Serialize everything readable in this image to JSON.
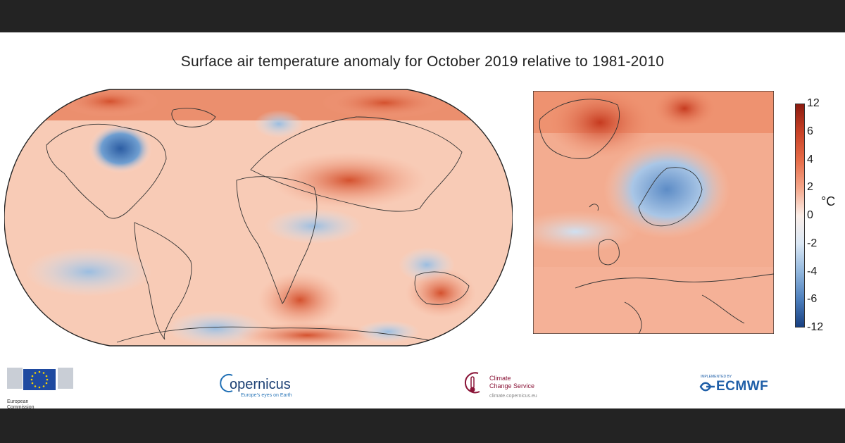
{
  "title": "Surface air temperature anomaly for October 2019 relative to 1981-2010",
  "colorbar": {
    "unit": "°C",
    "ticks": [
      "12",
      "6",
      "4",
      "2",
      "0",
      "-2",
      "-4",
      "-6",
      "-12"
    ],
    "colors": [
      "#8b1a0f",
      "#c84126",
      "#e66b47",
      "#f5a68a",
      "#fbe0d6",
      "#dbe8f5",
      "#93b8de",
      "#4d7fbd",
      "#173f80"
    ]
  },
  "footer": {
    "ec_label_1": "European",
    "ec_label_2": "Commission",
    "copernicus_name": "opernicus",
    "copernicus_tagline": "Europe's eyes on Earth",
    "c3s_line1": "Climate",
    "c3s_line2": "Change Service",
    "c3s_url": "climate.copernicus.eu",
    "ecmwf_top": "IMPLEMENTED BY",
    "ecmwf_name": "ECMWF"
  }
}
